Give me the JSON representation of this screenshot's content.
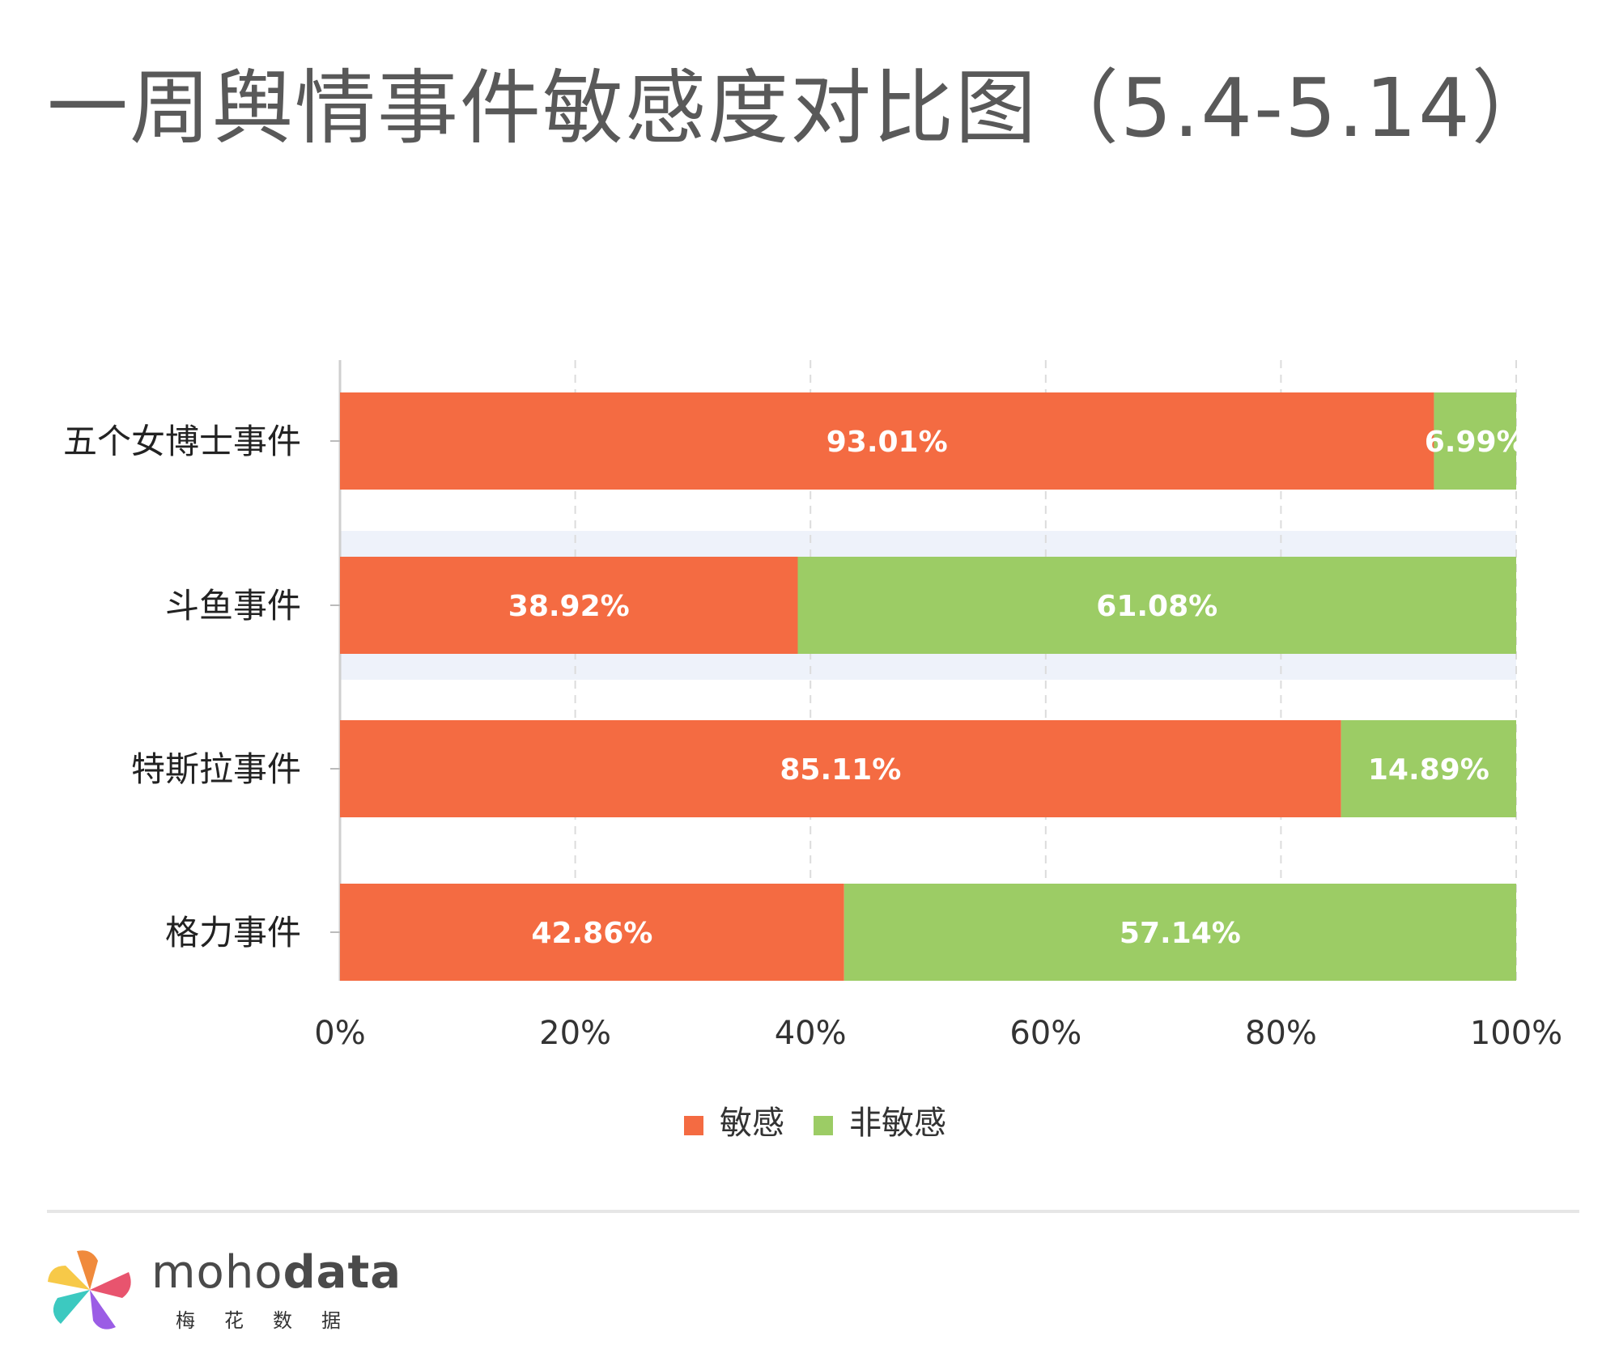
{
  "title": "一周舆情事件敏感度对比图（5.4-5.14）",
  "chart_data": {
    "type": "bar",
    "orientation": "horizontal",
    "stacked": true,
    "categories": [
      "五个女博士事件",
      "斗鱼事件",
      "特斯拉事件",
      "格力事件"
    ],
    "series": [
      {
        "name": "敏感",
        "values": [
          93.01,
          38.92,
          85.11,
          42.86
        ],
        "color": "#f46b42"
      },
      {
        "name": "非敏感",
        "values": [
          6.99,
          61.08,
          14.89,
          57.14
        ],
        "color": "#9ccc65"
      }
    ],
    "data_labels": [
      [
        "93.01%",
        "6.99%"
      ],
      [
        "38.92%",
        "61.08%"
      ],
      [
        "85.11%",
        "14.89%"
      ],
      [
        "42.86%",
        "57.14%"
      ]
    ],
    "xlim": [
      0,
      100
    ],
    "x_ticks": [
      "0%",
      "20%",
      "40%",
      "60%",
      "80%",
      "100%"
    ],
    "grid": "vertical-dashed",
    "highlighted_category": "斗鱼事件",
    "legend_position": "bottom-center"
  },
  "brand": {
    "name_light": "moho",
    "name_bold": "data",
    "subtitle": "梅花数据"
  }
}
